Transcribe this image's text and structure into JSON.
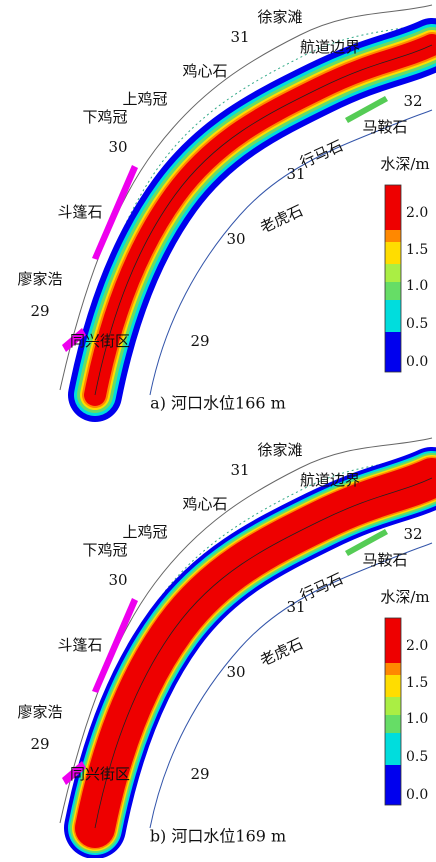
{
  "panels": [
    {
      "caption": "a) 河口水位166 m",
      "labels": [
        "徐家滩",
        "31",
        "航道边界",
        "鸡心石",
        "上鸡冠",
        "下鸡冠",
        "32",
        "马鞍石",
        "30",
        "行马石",
        "31",
        "斗篷石",
        "老虎石",
        "30",
        "廖家浩",
        "29",
        "同兴街区",
        "29"
      ],
      "legend": {
        "title": "水深/m",
        "ticks": [
          "2.0",
          "1.5",
          "1.0",
          "0.5",
          "0.0"
        ]
      }
    },
    {
      "caption": "b) 河口水位169 m",
      "labels": [
        "徐家滩",
        "31",
        "航道边界",
        "鸡心石",
        "上鸡冠",
        "下鸡冠",
        "32",
        "马鞍石",
        "30",
        "行马石",
        "31",
        "斗篷石",
        "老虎石",
        "30",
        "廖家浩",
        "29",
        "同兴街区",
        "29"
      ],
      "legend": {
        "title": "水深/m",
        "ticks": [
          "2.0",
          "1.5",
          "1.0",
          "0.5",
          "0.0"
        ]
      }
    }
  ]
}
